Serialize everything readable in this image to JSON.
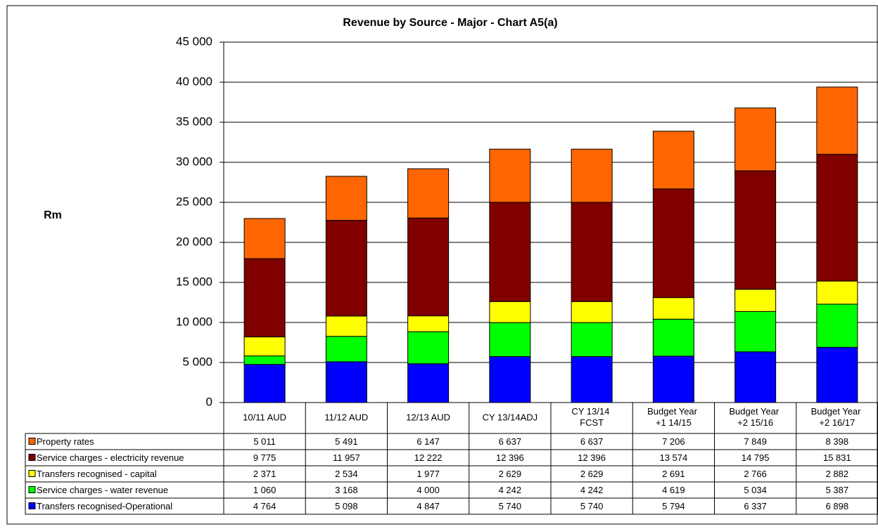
{
  "chart_data": {
    "type": "bar",
    "stacked": true,
    "title": "Revenue by Source - Major - Chart A5(a)",
    "y_label": "Rm",
    "categories": [
      "10/11 AUD",
      "11/12 AUD",
      "12/13 AUD",
      "CY 13/14ADJ",
      "CY 13/14 FCST",
      "Budget Year +1 14/15",
      "Budget Year +2 15/16",
      "Budget Year +2 16/17"
    ],
    "ylim": [
      0,
      45000
    ],
    "yticks": [
      0,
      {
        "value": 5000,
        "label": "5 000"
      },
      {
        "value": 10000,
        "label": "10 000"
      },
      {
        "value": 15000,
        "label": "15 000"
      },
      {
        "value": 20000,
        "label": "20 000"
      },
      {
        "value": 25000,
        "label": "25 000"
      },
      {
        "value": 30000,
        "label": "30 000"
      },
      {
        "value": 35000,
        "label": "35 000"
      },
      {
        "value": 40000,
        "label": "40 000"
      },
      {
        "value": 45000,
        "label": "45 000"
      }
    ],
    "grid": true,
    "series": [
      {
        "name": "Property rates",
        "color": "#ff6600",
        "values": [
          5011,
          5491,
          6147,
          6637,
          6637,
          7206,
          7849,
          8398
        ],
        "value_labels": [
          "5 011",
          "5 491",
          "6 147",
          "6 637",
          "6 637",
          "7 206",
          "7 849",
          "8 398"
        ]
      },
      {
        "name": "Service charges - electricity revenue",
        "color": "#800000",
        "values": [
          9775,
          11957,
          12222,
          12396,
          12396,
          13574,
          14795,
          15831
        ],
        "value_labels": [
          "9 775",
          "11 957",
          "12 222",
          "12 396",
          "12 396",
          "13 574",
          "14 795",
          "15 831"
        ]
      },
      {
        "name": "Transfers recognised - capital",
        "color": "#ffff00",
        "values": [
          2371,
          2534,
          1977,
          2629,
          2629,
          2691,
          2766,
          2882
        ],
        "value_labels": [
          "2 371",
          "2 534",
          "1 977",
          "2 629",
          "2 629",
          "2 691",
          "2 766",
          "2 882"
        ]
      },
      {
        "name": "Service charges - water revenue",
        "color": "#00ff00",
        "values": [
          1060,
          3168,
          4000,
          4242,
          4242,
          4619,
          5034,
          5387
        ],
        "value_labels": [
          "1 060",
          "3 168",
          "4 000",
          "4 242",
          "4 242",
          "4 619",
          "5 034",
          "5 387"
        ]
      },
      {
        "name": "Transfers recognised-Operational",
        "color": "#0000ff",
        "values": [
          4764,
          5098,
          4847,
          5740,
          5740,
          5794,
          6337,
          6898
        ],
        "value_labels": [
          "4 764",
          "5 098",
          "4 847",
          "5 740",
          "5 740",
          "5 794",
          "6 337",
          "6 898"
        ]
      }
    ]
  }
}
